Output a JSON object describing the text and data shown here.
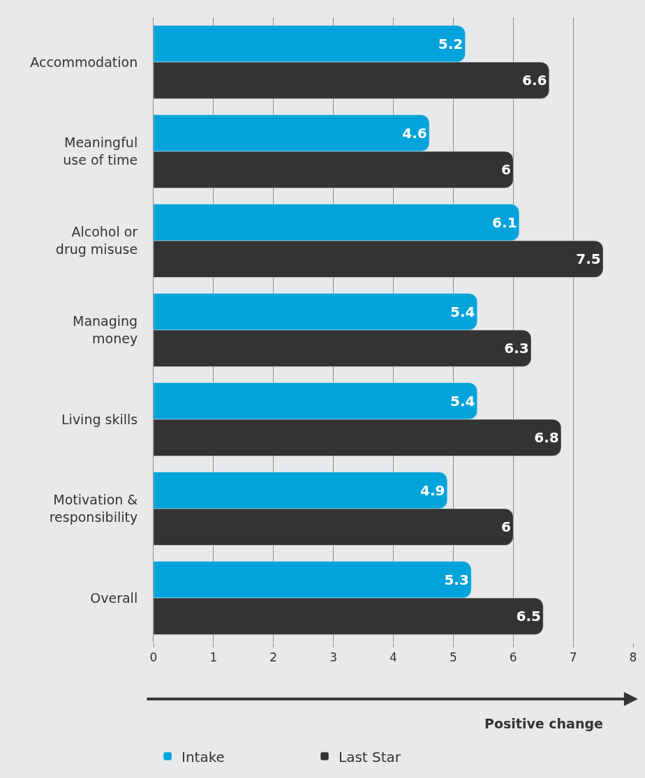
{
  "chart_data": {
    "type": "bar",
    "orientation": "horizontal",
    "categories": [
      "Accommodation",
      "Meaningful use of time",
      "Alcohol or drug misuse",
      "Managing money",
      "Living skills",
      "Motivation & responsibility",
      "Overall"
    ],
    "series": [
      {
        "name": "Intake",
        "color": "#00a3da",
        "values": [
          5.2,
          4.6,
          6.1,
          5.4,
          5.4,
          4.9,
          5.3
        ]
      },
      {
        "name": "Last Star",
        "color": "#333333",
        "values": [
          6.6,
          6,
          7.5,
          6.3,
          6.8,
          6,
          6.5
        ]
      }
    ],
    "xlim": [
      0,
      8
    ],
    "xticks": [
      0,
      1,
      2,
      3,
      4,
      5,
      6,
      7,
      8
    ],
    "xlabel": "Positive change",
    "data_labels": true,
    "grid": "x",
    "legend": "bottom left"
  }
}
